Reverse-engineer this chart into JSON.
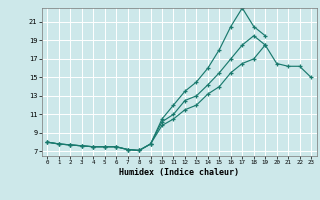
{
  "title": "",
  "xlabel": "Humidex (Indice chaleur)",
  "ylabel": "",
  "bg_color": "#cde8ea",
  "line_color": "#1a7a6e",
  "grid_color": "#ffffff",
  "xlim": [
    -0.5,
    23.5
  ],
  "ylim": [
    6.5,
    22.5
  ],
  "yticks": [
    7,
    9,
    11,
    13,
    15,
    17,
    19,
    21
  ],
  "xticks": [
    0,
    1,
    2,
    3,
    4,
    5,
    6,
    7,
    8,
    9,
    10,
    11,
    12,
    13,
    14,
    15,
    16,
    17,
    18,
    19,
    20,
    21,
    22,
    23
  ],
  "line1_y": [
    8.0,
    7.8,
    7.7,
    7.6,
    7.5,
    7.5,
    7.5,
    7.2,
    7.1,
    7.8,
    10.2,
    11.0,
    12.5,
    13.0,
    14.2,
    15.5,
    17.0,
    18.5,
    19.5,
    18.5,
    16.5,
    16.2,
    16.2,
    15.0
  ],
  "line2_y": [
    8.0,
    7.8,
    7.7,
    7.6,
    7.5,
    7.5,
    7.5,
    7.2,
    7.1,
    7.8,
    10.5,
    12.0,
    13.5,
    14.5,
    16.0,
    18.0,
    20.5,
    22.5,
    20.5,
    19.5,
    null,
    null,
    null,
    null
  ],
  "line3_y": [
    8.0,
    7.8,
    7.7,
    7.6,
    7.5,
    7.5,
    7.5,
    7.2,
    7.1,
    7.8,
    9.8,
    10.5,
    11.5,
    12.0,
    13.2,
    14.0,
    15.5,
    16.5,
    17.0,
    18.5,
    null,
    null,
    null,
    null
  ]
}
